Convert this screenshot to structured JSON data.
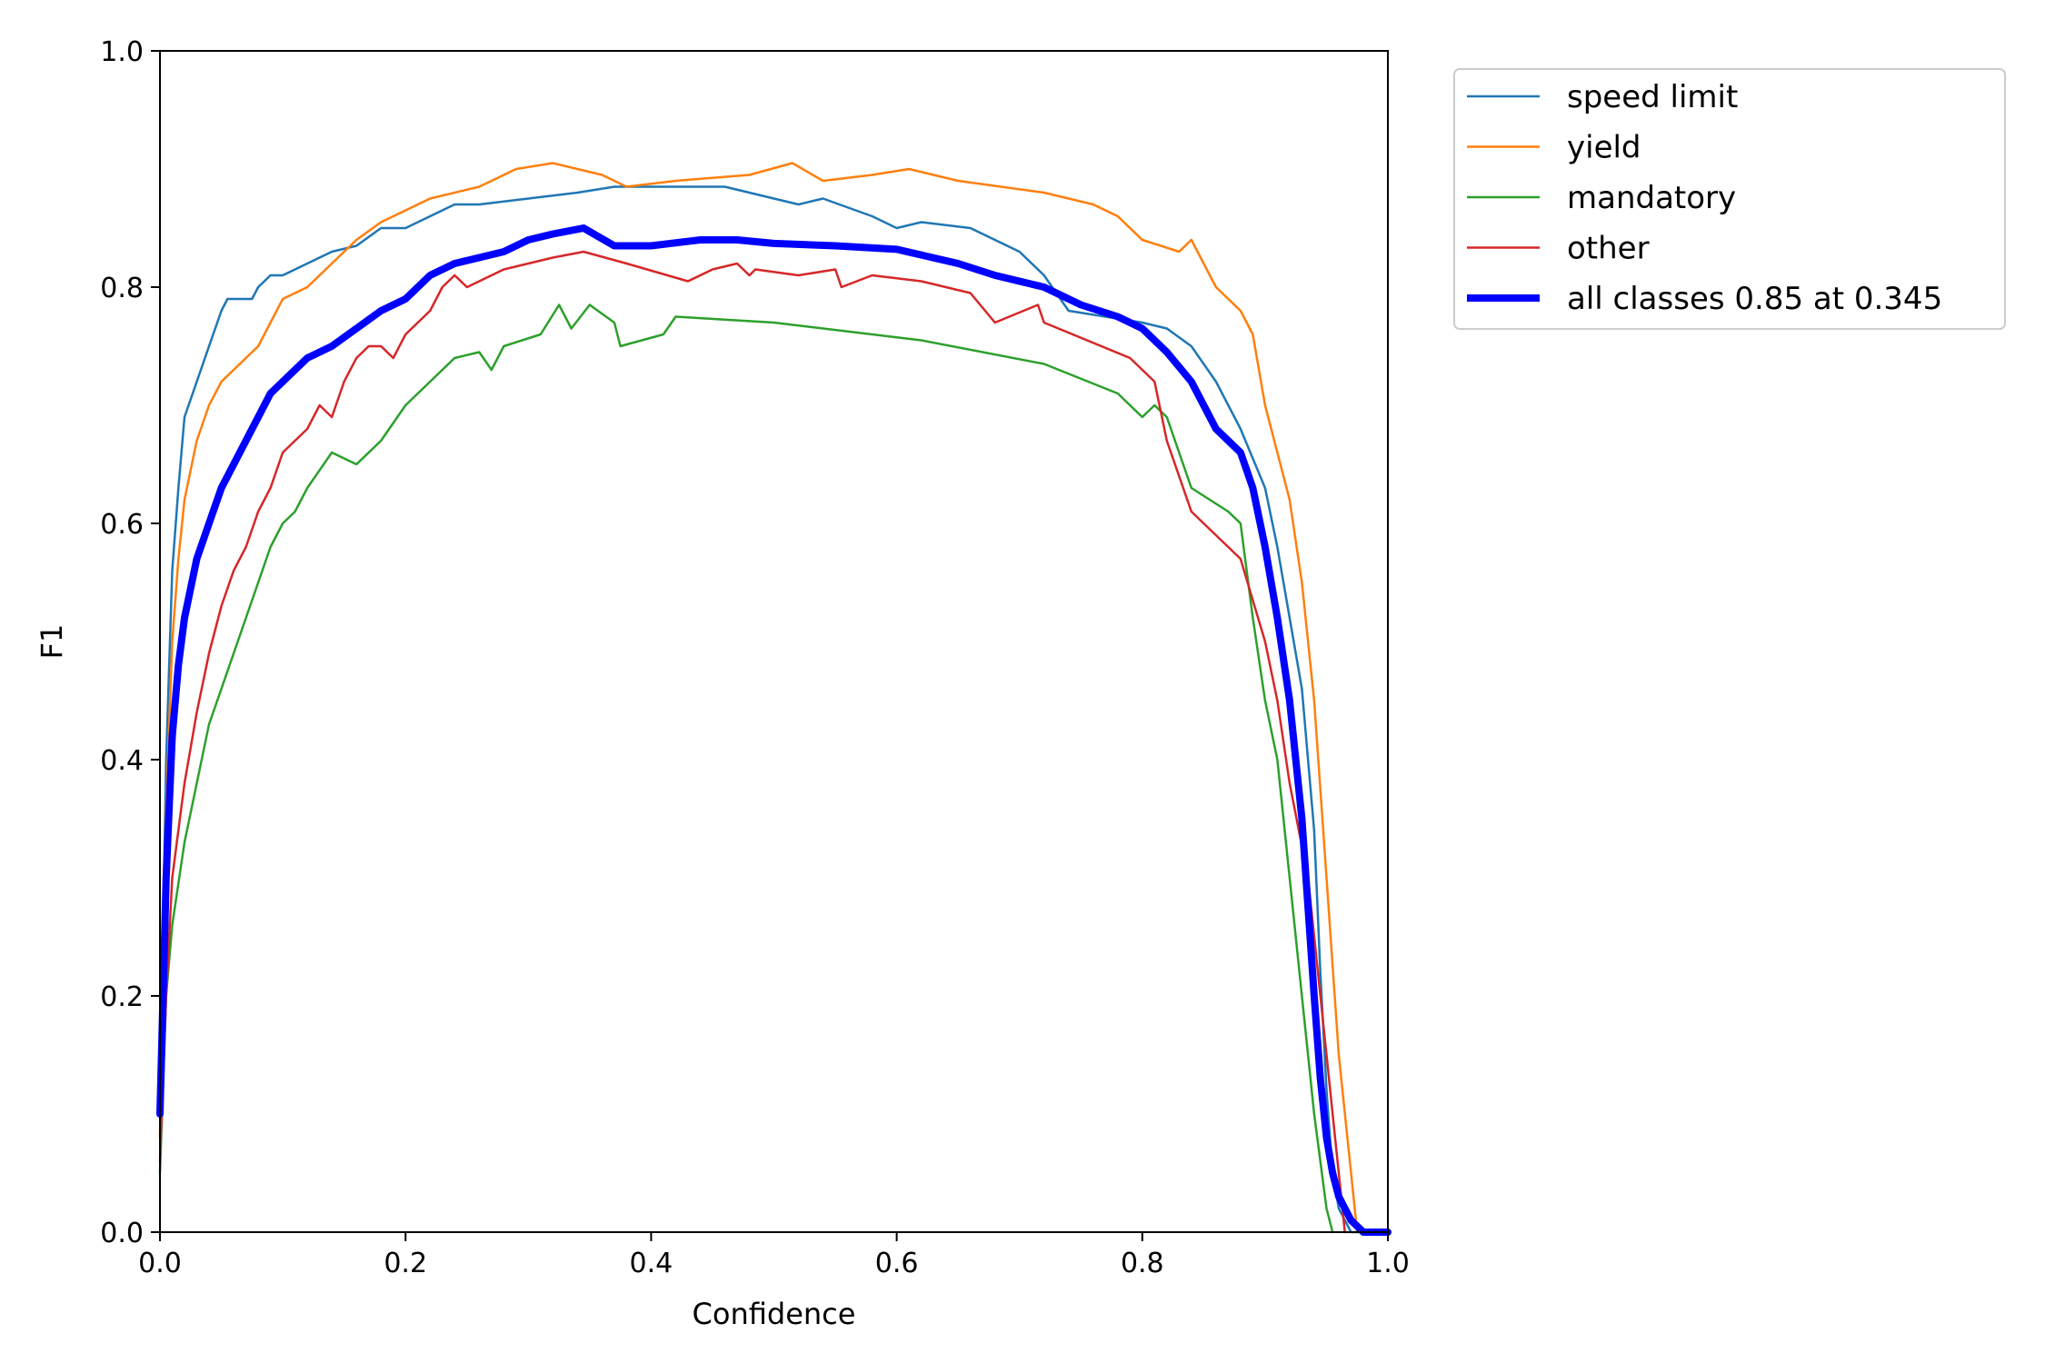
{
  "chart_data": {
    "type": "line",
    "title": "",
    "xlabel": "Confidence",
    "ylabel": "F1",
    "xlim": [
      0,
      1
    ],
    "ylim": [
      0,
      1
    ],
    "grid": false,
    "legend_position": "outside-top-right",
    "x_ticks": [
      "0.0",
      "0.2",
      "0.4",
      "0.6",
      "0.8",
      "1.0"
    ],
    "y_ticks": [
      "0.0",
      "0.2",
      "0.4",
      "0.6",
      "0.8",
      "1.0"
    ],
    "series": [
      {
        "name": "speed limit",
        "color": "#1f77b4",
        "x": [
          0.0,
          0.005,
          0.01,
          0.015,
          0.02,
          0.03,
          0.04,
          0.05,
          0.055,
          0.06,
          0.07,
          0.075,
          0.08,
          0.09,
          0.1,
          0.12,
          0.14,
          0.16,
          0.18,
          0.2,
          0.22,
          0.24,
          0.26,
          0.3,
          0.34,
          0.37,
          0.4,
          0.46,
          0.5,
          0.52,
          0.54,
          0.58,
          0.6,
          0.62,
          0.66,
          0.7,
          0.72,
          0.74,
          0.8,
          0.82,
          0.84,
          0.86,
          0.88,
          0.9,
          0.91,
          0.92,
          0.93,
          0.94,
          0.945,
          0.95,
          0.955,
          0.96,
          0.97,
          1.0
        ],
        "y": [
          0.12,
          0.4,
          0.56,
          0.63,
          0.69,
          0.72,
          0.75,
          0.78,
          0.79,
          0.79,
          0.79,
          0.79,
          0.8,
          0.81,
          0.81,
          0.82,
          0.83,
          0.835,
          0.85,
          0.85,
          0.86,
          0.87,
          0.87,
          0.875,
          0.88,
          0.885,
          0.885,
          0.885,
          0.875,
          0.87,
          0.875,
          0.86,
          0.85,
          0.855,
          0.85,
          0.83,
          0.81,
          0.78,
          0.77,
          0.765,
          0.75,
          0.72,
          0.68,
          0.63,
          0.58,
          0.52,
          0.46,
          0.34,
          0.22,
          0.12,
          0.05,
          0.02,
          0.0,
          0.0
        ]
      },
      {
        "name": "yield",
        "color": "#ff7f0e",
        "x": [
          0.0,
          0.005,
          0.01,
          0.015,
          0.02,
          0.03,
          0.04,
          0.05,
          0.06,
          0.07,
          0.08,
          0.09,
          0.1,
          0.12,
          0.14,
          0.16,
          0.18,
          0.2,
          0.22,
          0.26,
          0.29,
          0.32,
          0.36,
          0.38,
          0.42,
          0.48,
          0.515,
          0.54,
          0.58,
          0.61,
          0.65,
          0.72,
          0.76,
          0.78,
          0.8,
          0.83,
          0.84,
          0.86,
          0.88,
          0.89,
          0.9,
          0.92,
          0.93,
          0.94,
          0.95,
          0.96,
          0.97,
          0.975
        ],
        "y": [
          0.08,
          0.36,
          0.5,
          0.57,
          0.62,
          0.67,
          0.7,
          0.72,
          0.73,
          0.74,
          0.75,
          0.77,
          0.79,
          0.8,
          0.82,
          0.84,
          0.855,
          0.865,
          0.875,
          0.885,
          0.9,
          0.905,
          0.895,
          0.885,
          0.89,
          0.895,
          0.905,
          0.89,
          0.895,
          0.9,
          0.89,
          0.88,
          0.87,
          0.86,
          0.84,
          0.83,
          0.84,
          0.8,
          0.78,
          0.76,
          0.7,
          0.62,
          0.55,
          0.45,
          0.3,
          0.15,
          0.05,
          0.0
        ]
      },
      {
        "name": "mandatory",
        "color": "#2ca02c",
        "x": [
          0.0,
          0.005,
          0.01,
          0.02,
          0.03,
          0.04,
          0.05,
          0.06,
          0.07,
          0.08,
          0.09,
          0.1,
          0.11,
          0.12,
          0.14,
          0.16,
          0.18,
          0.2,
          0.22,
          0.24,
          0.26,
          0.27,
          0.28,
          0.31,
          0.325,
          0.335,
          0.35,
          0.37,
          0.375,
          0.41,
          0.42,
          0.5,
          0.62,
          0.72,
          0.78,
          0.8,
          0.81,
          0.82,
          0.83,
          0.84,
          0.87,
          0.88,
          0.89,
          0.9,
          0.91,
          0.92,
          0.93,
          0.94,
          0.95,
          0.955
        ],
        "y": [
          0.05,
          0.2,
          0.26,
          0.33,
          0.38,
          0.43,
          0.46,
          0.49,
          0.52,
          0.55,
          0.58,
          0.6,
          0.61,
          0.63,
          0.66,
          0.65,
          0.67,
          0.7,
          0.72,
          0.74,
          0.745,
          0.73,
          0.75,
          0.76,
          0.785,
          0.765,
          0.785,
          0.77,
          0.75,
          0.76,
          0.775,
          0.77,
          0.755,
          0.735,
          0.71,
          0.69,
          0.7,
          0.69,
          0.66,
          0.63,
          0.61,
          0.6,
          0.52,
          0.45,
          0.4,
          0.3,
          0.2,
          0.1,
          0.02,
          0.0
        ]
      },
      {
        "name": "other",
        "color": "#d62728",
        "x": [
          0.0,
          0.005,
          0.01,
          0.02,
          0.03,
          0.04,
          0.05,
          0.06,
          0.07,
          0.08,
          0.09,
          0.1,
          0.12,
          0.13,
          0.14,
          0.15,
          0.16,
          0.17,
          0.18,
          0.19,
          0.2,
          0.21,
          0.22,
          0.23,
          0.24,
          0.25,
          0.26,
          0.28,
          0.32,
          0.345,
          0.38,
          0.43,
          0.45,
          0.47,
          0.48,
          0.485,
          0.52,
          0.55,
          0.555,
          0.58,
          0.62,
          0.66,
          0.68,
          0.715,
          0.72,
          0.79,
          0.81,
          0.82,
          0.84,
          0.88,
          0.9,
          0.91,
          0.92,
          0.935,
          0.95,
          0.965
        ],
        "y": [
          0.06,
          0.2,
          0.3,
          0.38,
          0.44,
          0.49,
          0.53,
          0.56,
          0.58,
          0.61,
          0.63,
          0.66,
          0.68,
          0.7,
          0.69,
          0.72,
          0.74,
          0.75,
          0.75,
          0.74,
          0.76,
          0.77,
          0.78,
          0.8,
          0.81,
          0.8,
          0.805,
          0.815,
          0.825,
          0.83,
          0.82,
          0.805,
          0.815,
          0.82,
          0.81,
          0.815,
          0.81,
          0.815,
          0.8,
          0.81,
          0.805,
          0.795,
          0.77,
          0.785,
          0.77,
          0.74,
          0.72,
          0.67,
          0.61,
          0.57,
          0.5,
          0.45,
          0.38,
          0.3,
          0.15,
          0.0
        ]
      },
      {
        "name": "all classes 0.85 at 0.345",
        "color": "#0000ff",
        "bold": true,
        "x": [
          0.0,
          0.005,
          0.01,
          0.015,
          0.02,
          0.03,
          0.04,
          0.05,
          0.06,
          0.07,
          0.08,
          0.09,
          0.1,
          0.12,
          0.14,
          0.16,
          0.18,
          0.2,
          0.22,
          0.24,
          0.26,
          0.28,
          0.3,
          0.32,
          0.345,
          0.37,
          0.4,
          0.44,
          0.47,
          0.5,
          0.55,
          0.6,
          0.65,
          0.68,
          0.7,
          0.72,
          0.75,
          0.78,
          0.8,
          0.82,
          0.84,
          0.86,
          0.88,
          0.89,
          0.9,
          0.91,
          0.92,
          0.93,
          0.94,
          0.945,
          0.95,
          0.955,
          0.96,
          0.97,
          0.98,
          1.0
        ],
        "y": [
          0.1,
          0.3,
          0.42,
          0.48,
          0.52,
          0.57,
          0.6,
          0.63,
          0.65,
          0.67,
          0.69,
          0.71,
          0.72,
          0.74,
          0.75,
          0.765,
          0.78,
          0.79,
          0.81,
          0.82,
          0.825,
          0.83,
          0.84,
          0.845,
          0.85,
          0.835,
          0.835,
          0.84,
          0.84,
          0.837,
          0.835,
          0.832,
          0.82,
          0.81,
          0.805,
          0.8,
          0.785,
          0.775,
          0.765,
          0.745,
          0.72,
          0.68,
          0.66,
          0.63,
          0.58,
          0.52,
          0.45,
          0.35,
          0.2,
          0.13,
          0.08,
          0.05,
          0.03,
          0.01,
          0.0,
          0.0
        ]
      }
    ]
  }
}
